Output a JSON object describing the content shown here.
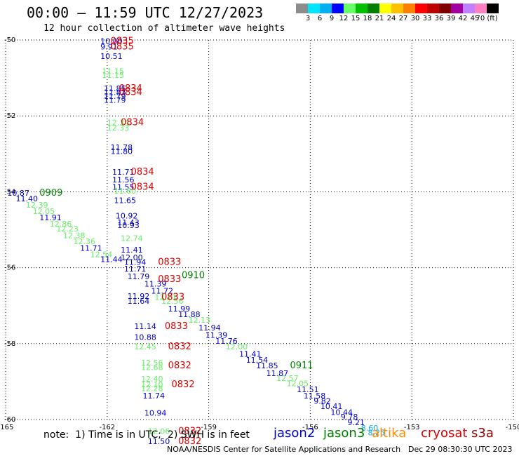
{
  "title": "00:00 – 11:59 UTC 12/27/2023",
  "subtitle": "12 hour collection of altimeter wave heights",
  "legend": {
    "colors": [
      "#8c8c8c",
      "#00e5ff",
      "#00b0f0",
      "#0000ff",
      "#66ff66",
      "#00c000",
      "#008000",
      "#ffff00",
      "#ffc000",
      "#ff8000",
      "#ff0000",
      "#c00000",
      "#800000",
      "#a000a0",
      "#c080ff",
      "#ff80c0",
      "#000000"
    ],
    "labels": [
      "3",
      "6",
      "9",
      "12",
      "15",
      "18",
      "21",
      "24",
      "27",
      "30",
      "33",
      "36",
      "39",
      "42",
      "45",
      "70 (ft)"
    ]
  },
  "satellites": [
    {
      "name": "jason2",
      "color": "#0000cc"
    },
    {
      "name": "jason3",
      "color": "#008000"
    },
    {
      "name": "altika",
      "color": "#ff8c00"
    },
    {
      "name": "cryosat",
      "color": "#dd0000"
    },
    {
      "name": "s3a",
      "color": "#990000"
    }
  ],
  "footnote": "note:  1) Time is in UTC;  2) SWH is in feet",
  "credit": "NOAA/NESDIS Center for Satellite Applications and Research",
  "timestamp": "Dec 29 08:30:30 UTC 2023",
  "chart_data": {
    "type": "scatter",
    "xlim": [
      -165,
      -150
    ],
    "ylim": [
      -60,
      -50
    ],
    "x_ticks": [
      "-165",
      "-162",
      "-159",
      "-156",
      "-153",
      "-150"
    ],
    "y_ticks": [
      "-50",
      "-52",
      "-54",
      "-56",
      "-58",
      "-60"
    ],
    "grid": true,
    "labels": [
      {
        "x": -162.2,
        "y": -50.1,
        "text": "10.00",
        "c": "#0000cc"
      },
      {
        "x": -162.2,
        "y": -50.25,
        "text": "9.91",
        "c": "#0000cc"
      },
      {
        "x": -162.2,
        "y": -50.5,
        "text": "10.51",
        "c": "#0000cc"
      },
      {
        "x": -162.15,
        "y": -50.9,
        "text": "11.15",
        "c": "#66ee66"
      },
      {
        "x": -162.15,
        "y": -51.0,
        "text": "11.15",
        "c": "#66ee66"
      },
      {
        "x": -162.1,
        "y": -51.35,
        "text": "11.85",
        "c": "#0000cc"
      },
      {
        "x": -162.1,
        "y": -51.45,
        "text": "11.83",
        "c": "#0000cc"
      },
      {
        "x": -162.1,
        "y": -51.55,
        "text": "11.79",
        "c": "#0000cc"
      },
      {
        "x": -162.1,
        "y": -51.65,
        "text": "11.79",
        "c": "#0000cc"
      },
      {
        "x": -162.0,
        "y": -52.25,
        "text": "12.34",
        "c": "#66ee66"
      },
      {
        "x": -162.0,
        "y": -52.38,
        "text": "12.33",
        "c": "#66ee66"
      },
      {
        "x": -161.9,
        "y": -52.9,
        "text": "11.78",
        "c": "#0000cc"
      },
      {
        "x": -161.9,
        "y": -53.0,
        "text": "11.80",
        "c": "#0000cc"
      },
      {
        "x": -161.85,
        "y": -53.55,
        "text": "11.71",
        "c": "#0000cc"
      },
      {
        "x": -161.85,
        "y": -53.75,
        "text": "11.56",
        "c": "#0000cc"
      },
      {
        "x": -161.85,
        "y": -53.95,
        "text": "11.55",
        "c": "#0000cc"
      },
      {
        "x": -161.8,
        "y": -54.05,
        "text": "11.60",
        "c": "#66ee66"
      },
      {
        "x": -161.8,
        "y": -54.3,
        "text": "11.65",
        "c": "#0000cc"
      },
      {
        "x": -161.75,
        "y": -54.7,
        "text": "10.92",
        "c": "#0000cc"
      },
      {
        "x": -161.7,
        "y": -54.88,
        "text": "11.43",
        "c": "#0000cc"
      },
      {
        "x": -161.7,
        "y": -54.95,
        "text": "10.93",
        "c": "#0000cc"
      },
      {
        "x": -161.6,
        "y": -55.3,
        "text": "12.74",
        "c": "#66ee66"
      },
      {
        "x": -161.6,
        "y": -55.6,
        "text": "11.41",
        "c": "#0000cc"
      },
      {
        "x": -161.6,
        "y": -55.8,
        "text": "12.00",
        "c": "#0000cc"
      },
      {
        "x": -161.5,
        "y": -55.92,
        "text": "11.94",
        "c": "#0000cc"
      },
      {
        "x": -161.5,
        "y": -56.1,
        "text": "11.71",
        "c": "#0000cc"
      },
      {
        "x": -161.4,
        "y": -56.3,
        "text": "11.79",
        "c": "#0000cc"
      },
      {
        "x": -160.9,
        "y": -56.5,
        "text": "11.39",
        "c": "#0000cc"
      },
      {
        "x": -160.7,
        "y": -56.68,
        "text": "11.72",
        "c": "#0000cc"
      },
      {
        "x": -160.6,
        "y": -56.85,
        "text": "12.21",
        "c": "#66ee66"
      },
      {
        "x": -161.4,
        "y": -56.82,
        "text": "11.92",
        "c": "#0000cc"
      },
      {
        "x": -161.4,
        "y": -56.95,
        "text": "11.64",
        "c": "#0000cc"
      },
      {
        "x": -160.4,
        "y": -56.95,
        "text": "12.56",
        "c": "#66ee66"
      },
      {
        "x": -160.2,
        "y": -57.15,
        "text": "11.99",
        "c": "#0000cc"
      },
      {
        "x": -159.9,
        "y": -57.3,
        "text": "11.88",
        "c": "#0000cc"
      },
      {
        "x": -159.6,
        "y": -57.45,
        "text": "12.13",
        "c": "#66ee66"
      },
      {
        "x": -159.3,
        "y": -57.65,
        "text": "11.94",
        "c": "#0000cc"
      },
      {
        "x": -159.1,
        "y": -57.85,
        "text": "11.39",
        "c": "#0000cc"
      },
      {
        "x": -158.8,
        "y": -58.0,
        "text": "11.76",
        "c": "#0000cc"
      },
      {
        "x": -158.5,
        "y": -58.15,
        "text": "12.00",
        "c": "#66ee66"
      },
      {
        "x": -158.1,
        "y": -58.35,
        "text": "11.41",
        "c": "#0000cc"
      },
      {
        "x": -157.9,
        "y": -58.5,
        "text": "11.54",
        "c": "#0000cc"
      },
      {
        "x": -157.6,
        "y": -58.65,
        "text": "11.85",
        "c": "#0000cc"
      },
      {
        "x": -157.3,
        "y": -58.85,
        "text": "11.87",
        "c": "#0000cc"
      },
      {
        "x": -157.0,
        "y": -58.98,
        "text": "12.57",
        "c": "#66ee66"
      },
      {
        "x": -156.7,
        "y": -59.12,
        "text": "12.05",
        "c": "#66ee66"
      },
      {
        "x": -156.4,
        "y": -59.28,
        "text": "11.51",
        "c": "#0000cc"
      },
      {
        "x": -156.2,
        "y": -59.45,
        "text": "11.58",
        "c": "#0000cc"
      },
      {
        "x": -155.9,
        "y": -59.58,
        "text": "9.82",
        "c": "#0000cc"
      },
      {
        "x": -155.7,
        "y": -59.72,
        "text": "10.41",
        "c": "#0000cc"
      },
      {
        "x": -155.4,
        "y": -59.88,
        "text": "10.44",
        "c": "#0000cc"
      },
      {
        "x": -155.1,
        "y": -60.0,
        "text": "9.78",
        "c": "#0000cc"
      },
      {
        "x": -154.9,
        "y": -60.15,
        "text": "9.21",
        "c": "#0000cc"
      },
      {
        "x": -154.5,
        "y": -60.3,
        "text": "8.60",
        "c": "#00aaee"
      },
      {
        "x": -154.3,
        "y": -60.42,
        "text": "8.25",
        "c": "#00aaee"
      },
      {
        "x": -164.95,
        "y": -54.1,
        "text": "10.87",
        "c": "#0000cc"
      },
      {
        "x": -164.7,
        "y": -54.25,
        "text": "11.40",
        "c": "#0000cc"
      },
      {
        "x": -164.4,
        "y": -54.42,
        "text": "12.39",
        "c": "#66ee66"
      },
      {
        "x": -164.2,
        "y": -54.58,
        "text": "12.05",
        "c": "#66ee66"
      },
      {
        "x": -164.0,
        "y": -54.75,
        "text": "11.91",
        "c": "#0000cc"
      },
      {
        "x": -163.7,
        "y": -54.92,
        "text": "12.86",
        "c": "#66ee66"
      },
      {
        "x": -163.5,
        "y": -55.05,
        "text": "12.23",
        "c": "#66ee66"
      },
      {
        "x": -163.3,
        "y": -55.22,
        "text": "12.38",
        "c": "#66ee66"
      },
      {
        "x": -163.0,
        "y": -55.38,
        "text": "12.36",
        "c": "#66ee66"
      },
      {
        "x": -162.8,
        "y": -55.55,
        "text": "11.71",
        "c": "#0000cc"
      },
      {
        "x": -162.5,
        "y": -55.72,
        "text": "12.54",
        "c": "#66ee66"
      },
      {
        "x": -162.2,
        "y": -55.85,
        "text": "11.44",
        "c": "#0000cc"
      },
      {
        "x": -161.2,
        "y": -57.62,
        "text": "11.14",
        "c": "#0000cc"
      },
      {
        "x": -161.2,
        "y": -57.9,
        "text": "10.88",
        "c": "#0000cc"
      },
      {
        "x": -161.2,
        "y": -58.15,
        "text": "12.45",
        "c": "#66ee66"
      },
      {
        "x": -161.0,
        "y": -58.58,
        "text": "12.56",
        "c": "#66ee66"
      },
      {
        "x": -161.0,
        "y": -58.7,
        "text": "12.68",
        "c": "#66ee66"
      },
      {
        "x": -161.0,
        "y": -59.0,
        "text": "12.40",
        "c": "#66ee66"
      },
      {
        "x": -161.0,
        "y": -59.15,
        "text": "12.10",
        "c": "#66ee66"
      },
      {
        "x": -161.0,
        "y": -59.25,
        "text": "12.28",
        "c": "#66ee66"
      },
      {
        "x": -160.95,
        "y": -59.45,
        "text": "11.74",
        "c": "#0000cc"
      },
      {
        "x": -160.9,
        "y": -59.9,
        "text": "10.94",
        "c": "#0000cc"
      },
      {
        "x": -160.8,
        "y": -60.38,
        "text": "12.06",
        "c": "#66ee66"
      },
      {
        "x": -160.8,
        "y": -60.65,
        "text": "11.50",
        "c": "#0000cc"
      }
    ],
    "times": [
      {
        "x": -161.9,
        "y": -50.1,
        "text": "0835",
        "c": "#dd0000"
      },
      {
        "x": -161.9,
        "y": -50.25,
        "text": "0835",
        "c": "#dd0000"
      },
      {
        "x": -161.65,
        "y": -51.35,
        "text": "0834",
        "c": "#dd0000"
      },
      {
        "x": -161.65,
        "y": -51.45,
        "text": "0834",
        "c": "#dd0000"
      },
      {
        "x": -161.6,
        "y": -52.25,
        "text": "0834",
        "c": "#dd0000"
      },
      {
        "x": -161.3,
        "y": -53.55,
        "text": "0834",
        "c": "#dd0000"
      },
      {
        "x": -161.3,
        "y": -53.95,
        "text": "0834",
        "c": "#dd0000"
      },
      {
        "x": -164.0,
        "y": -54.1,
        "text": "0909",
        "c": "#008000"
      },
      {
        "x": -160.5,
        "y": -55.92,
        "text": "0833",
        "c": "#dd0000"
      },
      {
        "x": -160.5,
        "y": -56.38,
        "text": "0833",
        "c": "#dd0000"
      },
      {
        "x": -159.8,
        "y": -56.28,
        "text": "0910",
        "c": "#008000"
      },
      {
        "x": -160.4,
        "y": -56.85,
        "text": "0833",
        "c": "#dd0000"
      },
      {
        "x": -160.3,
        "y": -57.62,
        "text": "0833",
        "c": "#dd0000"
      },
      {
        "x": -160.2,
        "y": -58.15,
        "text": "0832",
        "c": "#dd0000"
      },
      {
        "x": -160.2,
        "y": -58.65,
        "text": "0832",
        "c": "#dd0000"
      },
      {
        "x": -156.6,
        "y": -58.65,
        "text": "0911",
        "c": "#008000"
      },
      {
        "x": -160.1,
        "y": -59.15,
        "text": "0832",
        "c": "#dd0000"
      },
      {
        "x": -159.9,
        "y": -60.38,
        "text": "0832",
        "c": "#dd0000"
      },
      {
        "x": -159.9,
        "y": -60.65,
        "text": "0832",
        "c": "#dd0000"
      }
    ]
  }
}
